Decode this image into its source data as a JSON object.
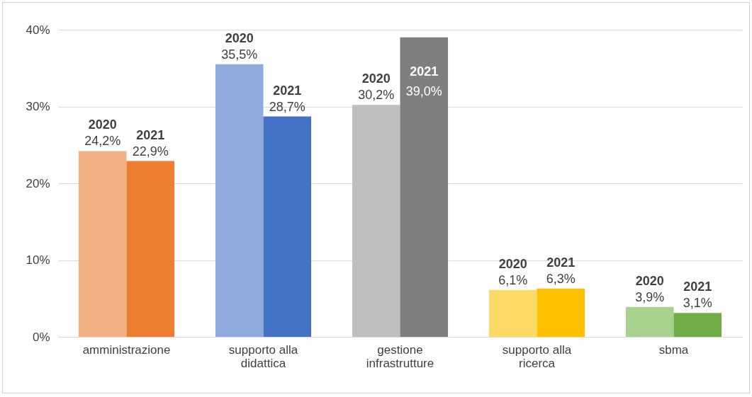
{
  "chart_data": {
    "type": "bar",
    "categories": [
      "amministrazione",
      "supporto alla didattica",
      "gestione infrastrutture",
      "supporto alla ricerca",
      "sbma"
    ],
    "series": [
      {
        "name": "2020",
        "colors": [
          "#f4b183",
          "#8faadc",
          "#bfbfbf",
          "#ffd966",
          "#a9d18e"
        ],
        "values": [
          24.2,
          35.5,
          30.2,
          6.1,
          3.9
        ],
        "value_labels": [
          "24,2%",
          "35,5%",
          "30,2%",
          "6,1%",
          "3,9%"
        ]
      },
      {
        "name": "2021",
        "colors": [
          "#ed7d31",
          "#4472c4",
          "#7f7f7f",
          "#ffc000",
          "#70ad47"
        ],
        "values": [
          22.9,
          28.7,
          39.0,
          6.3,
          3.1
        ],
        "value_labels": [
          "22,9%",
          "28,7%",
          "39,0%",
          "6,3%",
          "3,1%"
        ]
      }
    ],
    "ylim": [
      0,
      40
    ],
    "yticks": [
      {
        "value": 0,
        "label": "0%"
      },
      {
        "value": 10,
        "label": "10%"
      },
      {
        "value": 20,
        "label": "20%"
      },
      {
        "value": 30,
        "label": "30%"
      },
      {
        "value": 40,
        "label": "40%"
      }
    ],
    "grid": "y"
  }
}
